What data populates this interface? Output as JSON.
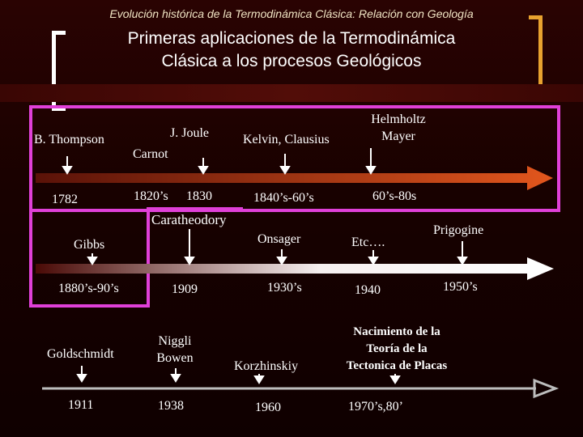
{
  "header": {
    "subtitle": "Evolución histórica de la Termodinámica Clásica: Relación con Geología",
    "title_line1": "Primeras aplicaciones de la Termodinámica",
    "title_line2": "Clásica a los procesos Geológicos"
  },
  "timeline1": {
    "names": {
      "thompson": "B. Thompson",
      "joule": "J. Joule",
      "carnot": "Carnot",
      "kelvin": "Kelvin, Clausius",
      "helmholtz1": "Helmholtz",
      "helmholtz2": "Mayer"
    },
    "dates": {
      "d1782": "1782",
      "d1820": "1820’s",
      "d1830": "1830",
      "d1840": "1840’s-60’s",
      "d60": "60’s-80s"
    }
  },
  "timeline2": {
    "names": {
      "caratheodory": "Caratheodory",
      "gibbs": "Gibbs",
      "onsager": "Onsager",
      "etc": "Etc….",
      "prigogine": "Prigogine"
    },
    "dates": {
      "d1880": "1880’s-90’s",
      "d1909": "1909",
      "d1930": "1930’s",
      "d1940": "1940",
      "d1950": "1950’s"
    }
  },
  "timeline3": {
    "names": {
      "goldschmidt": "Goldschmidt",
      "niggli1": "Niggli",
      "niggli2": "Bowen",
      "korzhinskiy": "Korzhinskiy",
      "tect1": "Nacimiento de la",
      "tect2": "Teoría de la",
      "tect3": "Tectonica de Placas"
    },
    "dates": {
      "d1911": "1911",
      "d1938": "1938",
      "d1960": "1960",
      "d1970": "1970’s,80’"
    }
  },
  "colors": {
    "frame": "#e040d8",
    "arrow1": "#d9531e",
    "arrow2": "#f2f2f2",
    "bracket_right": "#e8a22f"
  }
}
